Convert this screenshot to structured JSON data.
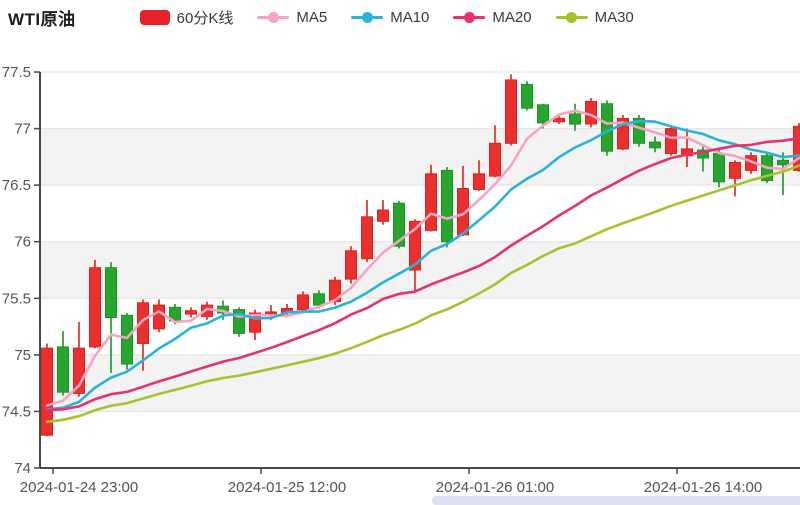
{
  "header": {
    "title": "WTI原油",
    "legend": [
      {
        "label": "60分K线",
        "type": "candle",
        "color": "#e7212a"
      },
      {
        "label": "MA5",
        "type": "line",
        "color": "#f5a4c1"
      },
      {
        "label": "MA10",
        "type": "line",
        "color": "#2ab3d4"
      },
      {
        "label": "MA20",
        "type": "line",
        "color": "#e6326e"
      },
      {
        "label": "MA30",
        "type": "line",
        "color": "#a3c42c"
      }
    ]
  },
  "chart_data": {
    "type": "candlestick",
    "title": "WTI原油 60分K线",
    "x_tick_labels": [
      "2024-01-24 23:00",
      "2024-01-25 12:00",
      "2024-01-26 01:00",
      "2024-01-26 14:00"
    ],
    "x_tick_label_indices": [
      2,
      15,
      28,
      41
    ],
    "y_axis": {
      "min": 74,
      "max": 77.5,
      "interval": 0.5,
      "tick_labels": [
        "74",
        "74.5",
        "75",
        "75.5",
        "76",
        "76.5",
        "77",
        "77.5"
      ]
    },
    "legend_series": [
      "60分K线",
      "MA5",
      "MA10",
      "MA20",
      "MA30"
    ],
    "candles": [
      {
        "t": "01-24 21:00",
        "o": 74.29,
        "c": 75.06,
        "h": 75.1,
        "l": 74.28
      },
      {
        "t": "01-24 22:00",
        "o": 75.07,
        "c": 74.67,
        "h": 75.21,
        "l": 74.64
      },
      {
        "t": "01-24 23:00",
        "o": 74.66,
        "c": 75.06,
        "h": 75.29,
        "l": 74.63
      },
      {
        "t": "01-25 00:00",
        "o": 75.07,
        "c": 75.77,
        "h": 75.84,
        "l": 75.06
      },
      {
        "t": "01-25 01:00",
        "o": 75.77,
        "c": 75.33,
        "h": 75.82,
        "l": 74.84
      },
      {
        "t": "01-25 02:00",
        "o": 75.35,
        "c": 74.92,
        "h": 75.37,
        "l": 74.87
      },
      {
        "t": "01-25 03:00",
        "o": 75.1,
        "c": 75.46,
        "h": 75.49,
        "l": 74.86
      },
      {
        "t": "01-25 04:00",
        "o": 75.23,
        "c": 75.44,
        "h": 75.49,
        "l": 75.2
      },
      {
        "t": "01-25 05:00",
        "o": 75.42,
        "c": 75.3,
        "h": 75.45,
        "l": 75.27
      },
      {
        "t": "01-25 06:00",
        "o": 75.36,
        "c": 75.39,
        "h": 75.42,
        "l": 75.33
      },
      {
        "t": "01-25 07:00",
        "o": 75.34,
        "c": 75.44,
        "h": 75.47,
        "l": 75.31
      },
      {
        "t": "01-25 08:00",
        "o": 75.43,
        "c": 75.37,
        "h": 75.48,
        "l": 75.31
      },
      {
        "t": "01-25 09:00",
        "o": 75.4,
        "c": 75.19,
        "h": 75.42,
        "l": 75.16
      },
      {
        "t": "01-25 10:00",
        "o": 75.2,
        "c": 75.37,
        "h": 75.4,
        "l": 75.13
      },
      {
        "t": "01-25 11:00",
        "o": 75.35,
        "c": 75.38,
        "h": 75.44,
        "l": 75.31
      },
      {
        "t": "01-25 12:00",
        "o": 75.37,
        "c": 75.41,
        "h": 75.45,
        "l": 75.34
      },
      {
        "t": "01-25 13:00",
        "o": 75.4,
        "c": 75.53,
        "h": 75.56,
        "l": 75.37
      },
      {
        "t": "01-25 14:00",
        "o": 75.54,
        "c": 75.44,
        "h": 75.57,
        "l": 75.41
      },
      {
        "t": "01-25 15:00",
        "o": 75.47,
        "c": 75.66,
        "h": 75.69,
        "l": 75.44
      },
      {
        "t": "01-25 16:00",
        "o": 75.67,
        "c": 75.92,
        "h": 75.96,
        "l": 75.63
      },
      {
        "t": "01-25 17:00",
        "o": 75.85,
        "c": 76.22,
        "h": 76.37,
        "l": 75.82
      },
      {
        "t": "01-25 18:00",
        "o": 76.18,
        "c": 76.28,
        "h": 76.37,
        "l": 76.15
      },
      {
        "t": "01-25 19:00",
        "o": 76.34,
        "c": 75.96,
        "h": 76.36,
        "l": 75.94
      },
      {
        "t": "01-25 20:00",
        "o": 75.75,
        "c": 76.18,
        "h": 76.2,
        "l": 75.57
      },
      {
        "t": "01-25 21:00",
        "o": 76.1,
        "c": 76.6,
        "h": 76.68,
        "l": 76.09
      },
      {
        "t": "01-25 22:00",
        "o": 76.63,
        "c": 76.0,
        "h": 76.66,
        "l": 75.95
      },
      {
        "t": "01-25 23:00",
        "o": 76.06,
        "c": 76.47,
        "h": 76.67,
        "l": 76.05
      },
      {
        "t": "01-26 00:00",
        "o": 76.46,
        "c": 76.6,
        "h": 76.72,
        "l": 76.45
      },
      {
        "t": "01-26 01:00",
        "o": 76.58,
        "c": 76.87,
        "h": 77.03,
        "l": 76.57
      },
      {
        "t": "01-26 02:00",
        "o": 76.87,
        "c": 77.43,
        "h": 77.48,
        "l": 76.85
      },
      {
        "t": "01-26 03:00",
        "o": 77.39,
        "c": 77.18,
        "h": 77.42,
        "l": 77.16
      },
      {
        "t": "01-26 04:00",
        "o": 77.21,
        "c": 77.05,
        "h": 77.22,
        "l": 77.0
      },
      {
        "t": "01-26 05:00",
        "o": 77.06,
        "c": 77.09,
        "h": 77.11,
        "l": 77.04
      },
      {
        "t": "01-26 06:00",
        "o": 77.13,
        "c": 77.04,
        "h": 77.22,
        "l": 76.98
      },
      {
        "t": "01-26 07:00",
        "o": 77.04,
        "c": 77.24,
        "h": 77.27,
        "l": 77.01
      },
      {
        "t": "01-26 08:00",
        "o": 77.22,
        "c": 76.8,
        "h": 77.25,
        "l": 76.76
      },
      {
        "t": "01-26 09:00",
        "o": 76.82,
        "c": 77.09,
        "h": 77.12,
        "l": 76.81
      },
      {
        "t": "01-26 10:00",
        "o": 77.09,
        "c": 76.87,
        "h": 77.12,
        "l": 76.84
      },
      {
        "t": "01-26 11:00",
        "o": 76.88,
        "c": 76.83,
        "h": 76.93,
        "l": 76.79
      },
      {
        "t": "01-26 12:00",
        "o": 76.78,
        "c": 77.0,
        "h": 77.03,
        "l": 76.76
      },
      {
        "t": "01-26 13:00",
        "o": 76.76,
        "c": 76.82,
        "h": 77.0,
        "l": 76.66
      },
      {
        "t": "01-26 14:00",
        "o": 76.81,
        "c": 76.74,
        "h": 76.86,
        "l": 76.62
      },
      {
        "t": "01-26 15:00",
        "o": 76.78,
        "c": 76.53,
        "h": 76.81,
        "l": 76.48
      },
      {
        "t": "01-26 16:00",
        "o": 76.56,
        "c": 76.7,
        "h": 76.72,
        "l": 76.4
      },
      {
        "t": "01-26 17:00",
        "o": 76.63,
        "c": 76.76,
        "h": 76.79,
        "l": 76.6
      },
      {
        "t": "01-26 18:00",
        "o": 76.76,
        "c": 76.54,
        "h": 76.79,
        "l": 76.52
      },
      {
        "t": "01-26 19:00",
        "o": 76.72,
        "c": 76.68,
        "h": 76.79,
        "l": 76.41
      },
      {
        "t": "01-26 20:00",
        "o": 76.63,
        "c": 77.02,
        "h": 77.05,
        "l": 76.62
      }
    ],
    "ma_series": [
      {
        "name": "MA5",
        "period": 5,
        "color": "#f5a4c1"
      },
      {
        "name": "MA10",
        "period": 10,
        "color": "#2ab3d4"
      },
      {
        "name": "MA20",
        "period": 20,
        "color": "#e6326e"
      },
      {
        "name": "MA30",
        "period": 30,
        "color": "#a3c42c"
      }
    ],
    "ma_warmup_closes": [
      74.15,
      74.1,
      74.2,
      74.15,
      74.2,
      74.25,
      74.2,
      74.25,
      74.3,
      74.25,
      74.5,
      74.55,
      74.5,
      74.45,
      74.5,
      74.55,
      74.5,
      74.45,
      74.5,
      74.55,
      74.5,
      74.55,
      74.5,
      74.45,
      74.4,
      74.45,
      74.4,
      74.45,
      74.4
    ],
    "colors": {
      "up": "#eb2f2f",
      "up_border": "#e02222",
      "down": "#27a52f",
      "down_border": "#1d9427",
      "split_area_alt": "#f3f3f3",
      "grid_line": "#e2e2e2",
      "axis_line": "#484848",
      "axis_label": "#555555"
    },
    "layout_hints": {
      "grid": true,
      "split_area": true,
      "legend_position": "top"
    }
  },
  "footer": {
    "h_scrollbar_color": "#d9e1f2"
  }
}
